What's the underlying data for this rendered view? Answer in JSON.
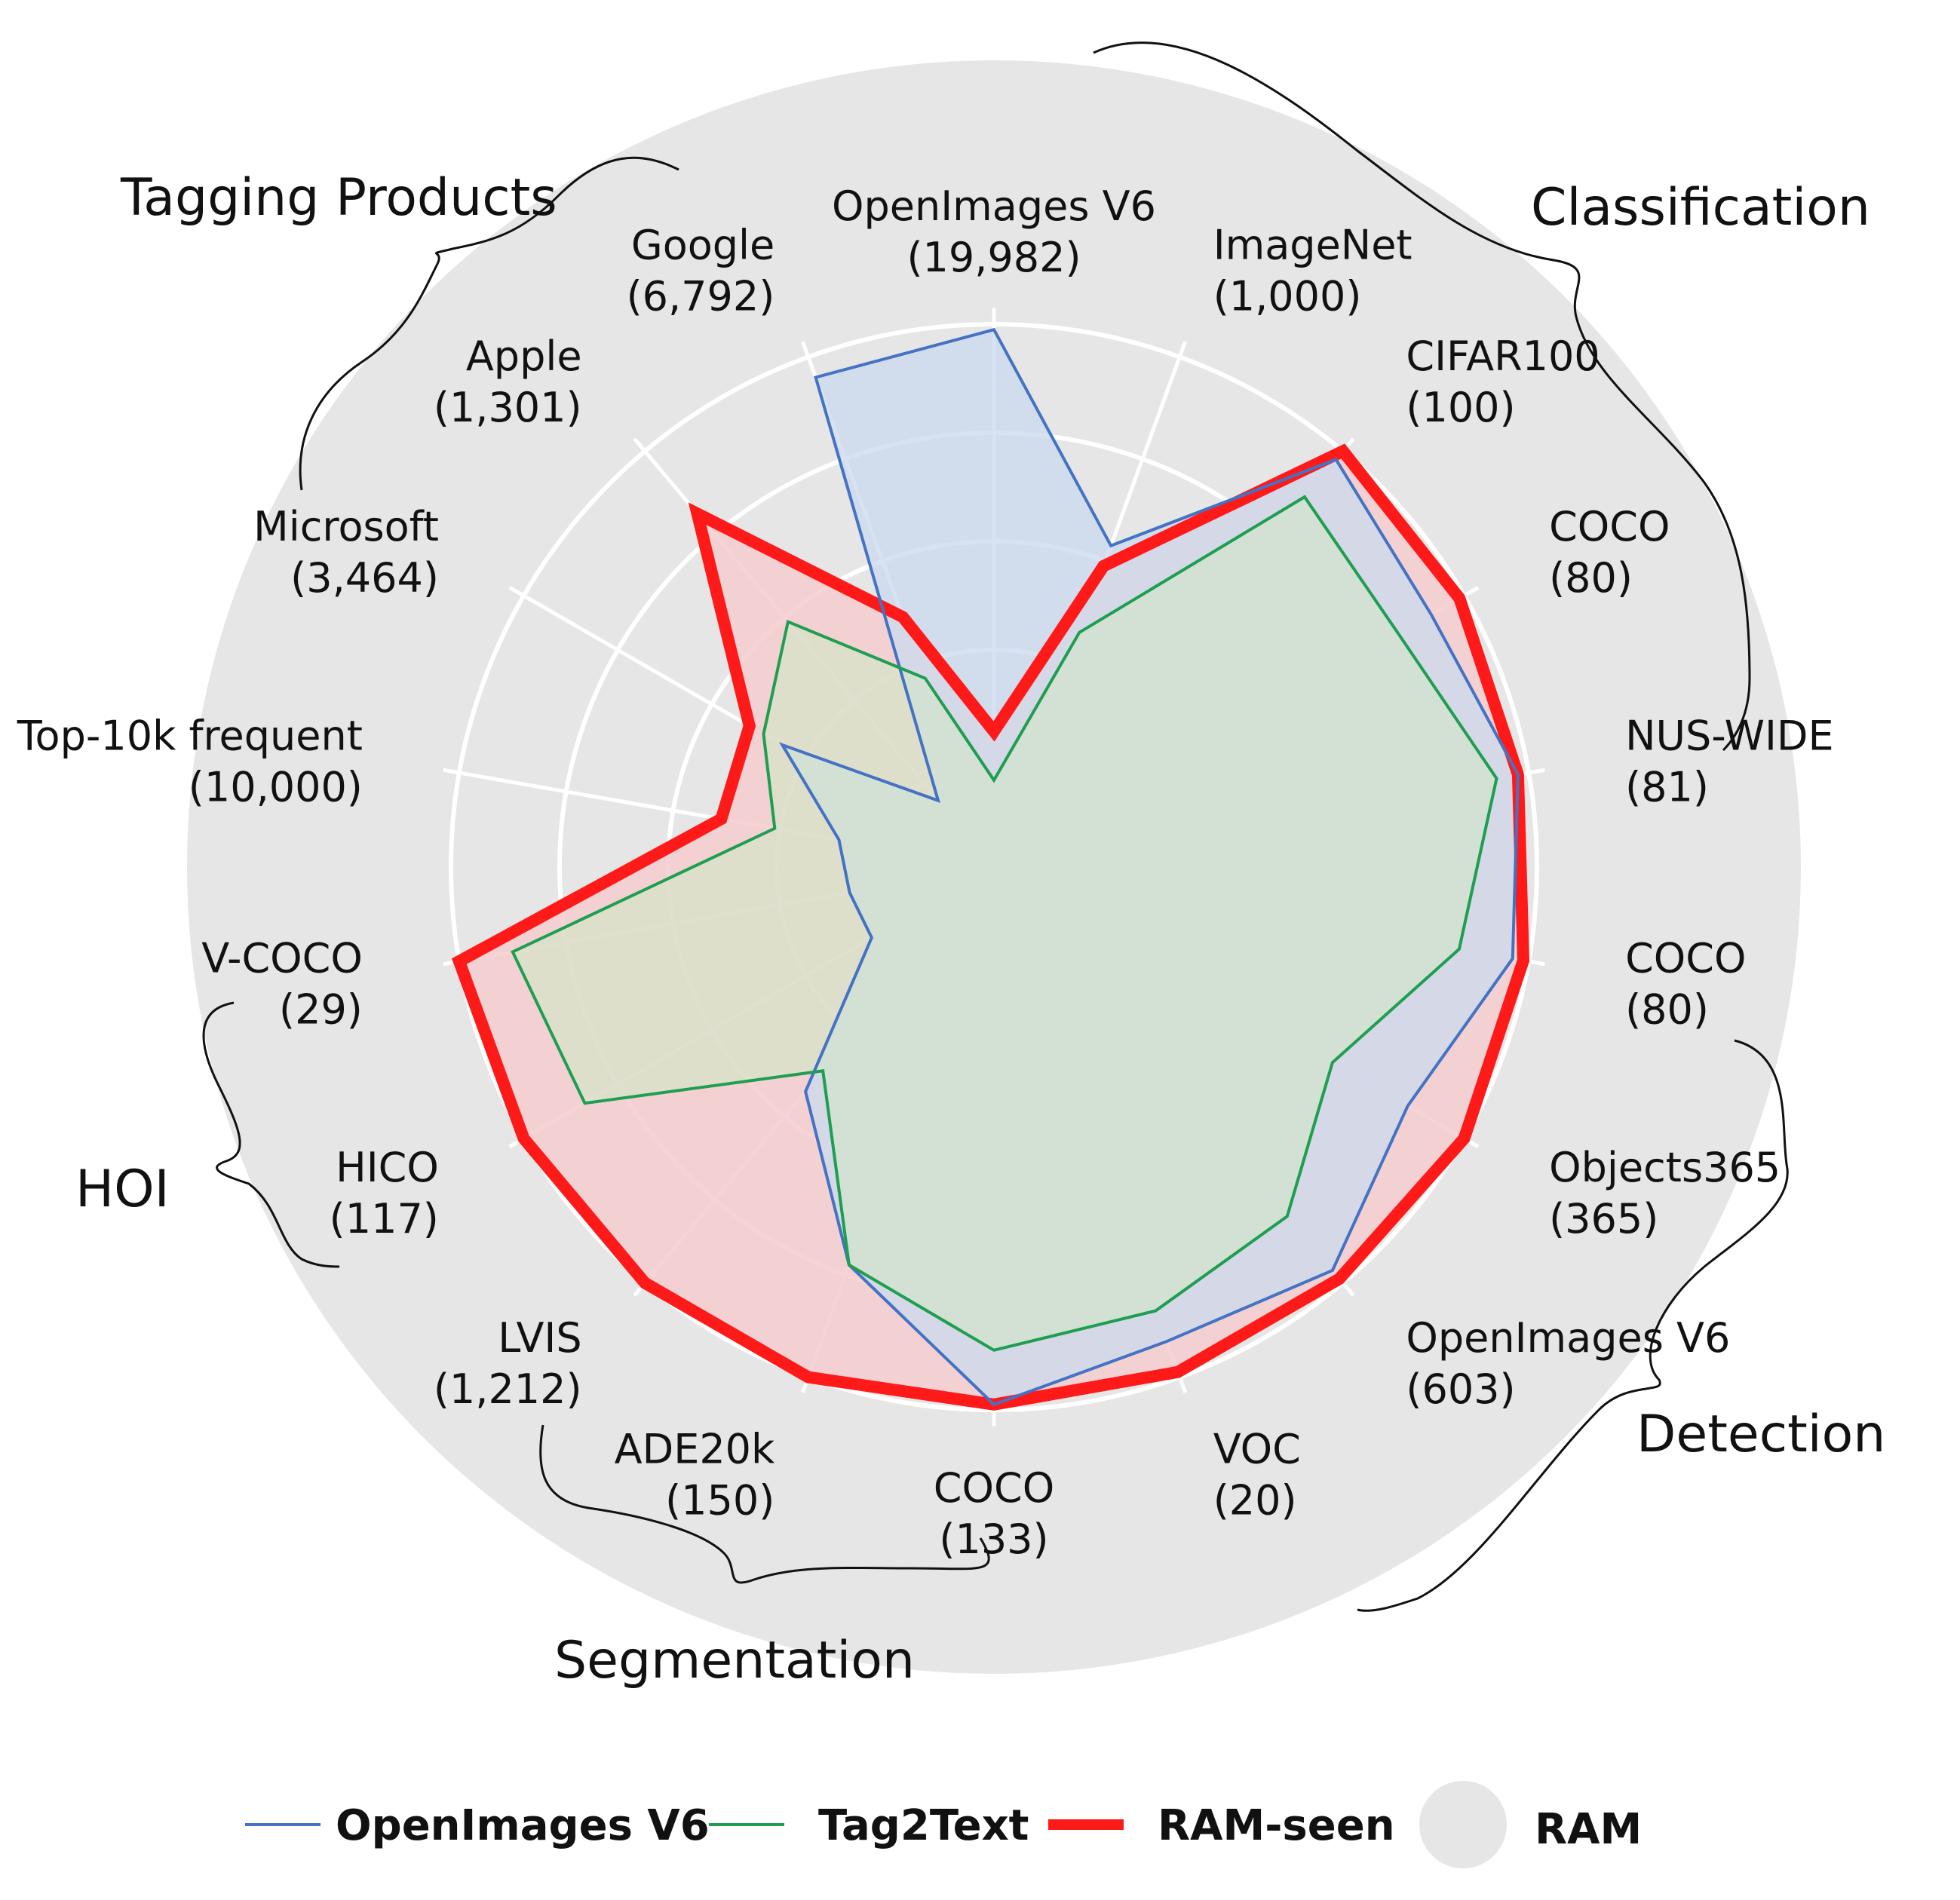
{
  "chart_data": {
    "type": "radar",
    "axes": [
      {
        "name": "OpenImages V6",
        "count": "(19,982)"
      },
      {
        "name": "ImageNet",
        "count": "(1,000)"
      },
      {
        "name": "CIFAR100",
        "count": "(100)"
      },
      {
        "name": "COCO",
        "count": "(80)"
      },
      {
        "name": "NUS-WIDE",
        "count": "(81)"
      },
      {
        "name": "COCO",
        "count": "(80)"
      },
      {
        "name": "Objects365",
        "count": "(365)"
      },
      {
        "name": "OpenImages V6",
        "count": "(603)"
      },
      {
        "name": "VOC",
        "count": "(20)"
      },
      {
        "name": "COCO",
        "count": "(133)"
      },
      {
        "name": "ADE20k",
        "count": "(150)"
      },
      {
        "name": "LVIS",
        "count": "(1,212)"
      },
      {
        "name": "HICO",
        "count": "(117)"
      },
      {
        "name": "V-COCO",
        "count": "(29)"
      },
      {
        "name": "Top-10k frequent",
        "count": "(10,000)"
      },
      {
        "name": "Microsoft",
        "count": "(3,464)"
      },
      {
        "name": "Apple",
        "count": "(1,301)"
      },
      {
        "name": "Google",
        "count": "(6,792)"
      }
    ],
    "rlim": [
      0,
      1
    ],
    "grid": true,
    "series": [
      {
        "name": "OpenImages V6",
        "color": "#4472c4",
        "fill": "#c9d9ee",
        "values": [
          0.99,
          0.63,
          0.98,
          0.93,
          0.98,
          0.97,
          0.88,
          0.97,
          0.93,
          0.99,
          0.78,
          0.54,
          0.26,
          0.27,
          0.29,
          0.45,
          0.16,
          0.96
        ]
      },
      {
        "name": "Tag2Text",
        "color": "#1e9e50",
        "fill": "#d1e8c6",
        "values": [
          0.16,
          0.46,
          0.89,
          0.86,
          0.94,
          0.87,
          0.72,
          0.84,
          0.87,
          0.89,
          0.78,
          0.49,
          0.87,
          0.9,
          0.41,
          0.49,
          0.59,
          0.37
        ]
      },
      {
        "name": "RAM-seen",
        "color": "#ff1a1a",
        "fill": "#f5cccf",
        "values": [
          0.25,
          0.59,
          1.0,
          0.99,
          0.98,
          0.99,
          1.0,
          0.99,
          0.99,
          0.99,
          1.0,
          1.0,
          1.0,
          1.0,
          0.51,
          0.52,
          0.85,
          0.49
        ]
      }
    ],
    "background_series": {
      "name": "RAM",
      "color": "#e6e6e6",
      "value": 1.0
    },
    "groups": [
      "Classification",
      "Detection",
      "Segmentation",
      "HOI",
      "Tagging Products"
    ],
    "legend_position": "bottom"
  }
}
